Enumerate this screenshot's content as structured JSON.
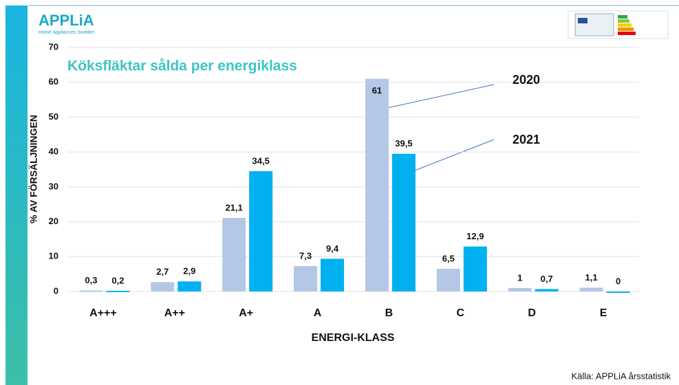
{
  "logo": {
    "name": "APPLiA",
    "subtitle": "Home Appliances Sweden"
  },
  "source": "Källa: APPLiA årsstatistik",
  "chart_data": {
    "type": "bar",
    "title": "Köksfläktar sålda per energiklass",
    "y_label": "% AV FÖRSÄLJNINGEN",
    "x_label": "ENERGI-KLASS",
    "categories": [
      "A+++",
      "A++",
      "A+",
      "A",
      "B",
      "C",
      "D",
      "E"
    ],
    "series": [
      {
        "name": "2020",
        "color": "#b4c7e7",
        "values": [
          0.3,
          2.7,
          21.1,
          7.3,
          61,
          6.5,
          1,
          1.1
        ],
        "value_labels": [
          "0,3",
          "2,7",
          "21,1",
          "7,3",
          "61",
          "6,5",
          "1",
          "1,1"
        ]
      },
      {
        "name": "2021",
        "color": "#00b0f0",
        "values": [
          0.2,
          2.9,
          34.5,
          9.4,
          39.5,
          12.9,
          0.7,
          0
        ],
        "value_labels": [
          "0,2",
          "2,9",
          "34,5",
          "9,4",
          "39,5",
          "12,9",
          "0,7",
          "0"
        ]
      }
    ],
    "ylim": [
      0,
      70
    ],
    "yticks": [
      0,
      10,
      20,
      30,
      40,
      50,
      60,
      70
    ],
    "grid": true
  }
}
